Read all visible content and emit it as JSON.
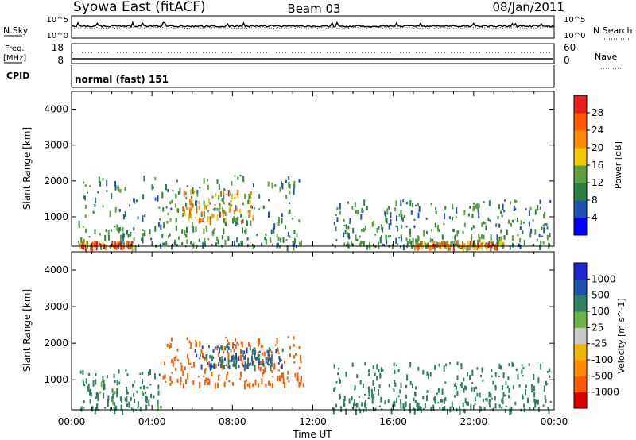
{
  "header": {
    "station": "Syowa East (fitACF)",
    "beam": "Beam 03",
    "date": "08/Jan/2011"
  },
  "top_panels": {
    "noise": {
      "left_label": "N.Sky",
      "right_label": "N.Search",
      "left_ticks": [
        "10^5",
        "10^0"
      ],
      "right_ticks": [
        "10^5",
        "10^0"
      ]
    },
    "freq": {
      "left_label_1": "Freq.",
      "left_label_2": "[MHz]",
      "right_label": "Nave",
      "left_ticks": [
        "18",
        "8"
      ],
      "right_ticks": [
        "60",
        "0"
      ]
    },
    "cpid": {
      "label": "CPID",
      "value": "normal (fast) 151"
    }
  },
  "colors": {
    "power_scale": [
      "#0000ff",
      "#1e50b4",
      "#2a8040",
      "#5aa03c",
      "#f0c800",
      "#ff8c00",
      "#ff5a00",
      "#e61e1e"
    ],
    "velocity_scale": [
      "#dd0000",
      "#ff5a00",
      "#ff8c00",
      "#f0b400",
      "#c8c8c8",
      "#6ab446",
      "#2e8060",
      "#2050b0",
      "#1e28d2"
    ]
  },
  "chart_data": [
    {
      "type": "heatmap",
      "title": "Power",
      "xlabel": "Time UT",
      "ylabel": "Slant Range [km]",
      "xlim": [
        0,
        24
      ],
      "ylim": [
        180,
        4500
      ],
      "x_ticks": [
        "00:00",
        "04:00",
        "08:00",
        "12:00",
        "16:00",
        "20:00",
        "00:00"
      ],
      "y_ticks": [
        "1000",
        "2000",
        "3000",
        "4000"
      ],
      "colorbar": {
        "label": "Power [dB]",
        "ticks": [
          "4",
          "8",
          "12",
          "16",
          "20",
          "24",
          "28"
        ],
        "range": [
          0,
          30
        ]
      },
      "data_regions": [
        {
          "t_start": 0.3,
          "t_end": 11.5,
          "range_start": 200,
          "range_end": 2200,
          "value": 10
        },
        {
          "t_start": 5.5,
          "t_end": 9.0,
          "range_start": 900,
          "range_end": 1800,
          "value": 18
        },
        {
          "t_start": 0.3,
          "t_end": 3.0,
          "range_start": 200,
          "range_end": 350,
          "value": 24
        },
        {
          "t_start": 13.0,
          "t_end": 23.8,
          "range_start": 200,
          "range_end": 1500,
          "value": 10
        },
        {
          "t_start": 17.0,
          "t_end": 21.5,
          "range_start": 200,
          "range_end": 350,
          "value": 22
        }
      ]
    },
    {
      "type": "heatmap",
      "title": "Velocity",
      "xlabel": "Time UT",
      "ylabel": "Slant Range [km]",
      "xlim": [
        0,
        24
      ],
      "ylim": [
        180,
        4500
      ],
      "x_ticks": [
        "00:00",
        "04:00",
        "08:00",
        "12:00",
        "16:00",
        "20:00",
        "00:00"
      ],
      "y_ticks": [
        "1000",
        "2000",
        "3000",
        "4000"
      ],
      "colorbar": {
        "label": "Velocity [m s^-1]",
        "ticks": [
          "1000",
          "500",
          "100",
          "25",
          "-25",
          "-100",
          "-500",
          "-1000"
        ]
      },
      "data_regions": [
        {
          "t_start": 0.3,
          "t_end": 4.5,
          "range_start": 200,
          "range_end": 1300,
          "value": 150
        },
        {
          "t_start": 4.5,
          "t_end": 11.5,
          "range_start": 900,
          "range_end": 2200,
          "value": -300
        },
        {
          "t_start": 13.0,
          "t_end": 23.8,
          "range_start": 200,
          "range_end": 1500,
          "value": 200
        },
        {
          "t_start": 6.0,
          "t_end": 10.5,
          "range_start": 1400,
          "range_end": 2000,
          "value": 500
        }
      ]
    }
  ]
}
